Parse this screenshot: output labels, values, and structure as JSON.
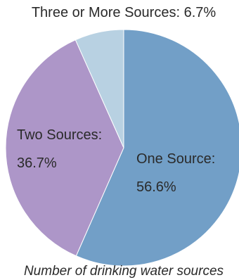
{
  "chart_data": {
    "type": "pie",
    "caption": "Number of drinking water sources",
    "slices": [
      {
        "label": "One Source:",
        "value_text": "56.6%",
        "value": 56.6,
        "color": "#729fc7"
      },
      {
        "label": "Two Sources:",
        "value_text": "36.7%",
        "value": 36.7,
        "color": "#ad96c8"
      },
      {
        "label": "Three or More Sources: 6.7%",
        "value_text": "",
        "value": 6.7,
        "color": "#b8d1e2"
      }
    ]
  }
}
